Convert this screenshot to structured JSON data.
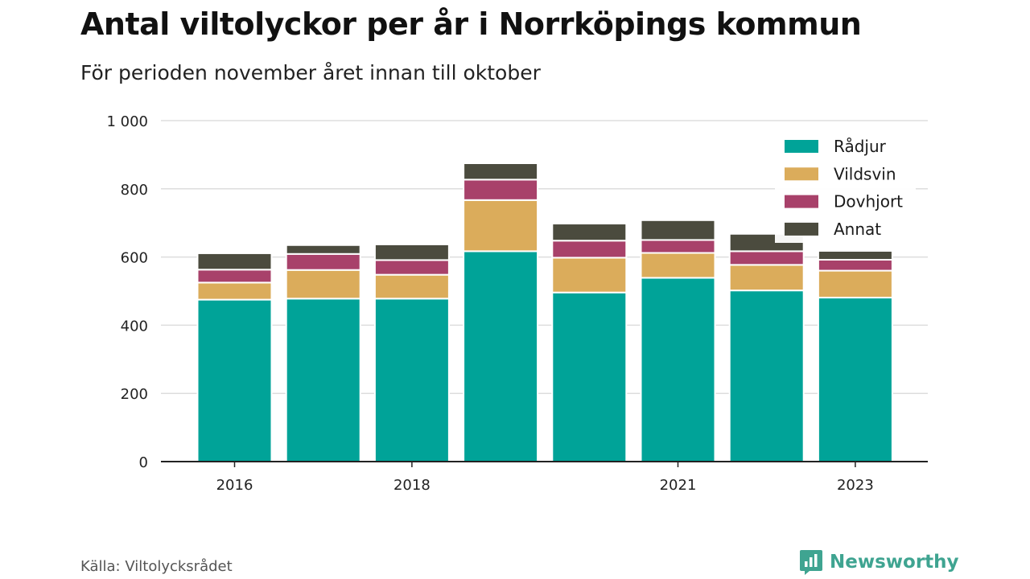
{
  "header": {
    "title": "Antal viltolyckor per år i Norrköpings kommun",
    "subtitle": "För perioden november året innan till oktober"
  },
  "footer": {
    "source": "Källa: Viltolycksrådet",
    "brand": "Newsworthy",
    "brand_icon": "newsworthy-logo-icon"
  },
  "colors": {
    "Rådjur": "#00a398",
    "Vildsvin": "#dbac5b",
    "Dovhjort": "#a8416a",
    "Annat": "#4b4b3e",
    "grid": "#dddddd",
    "axis": "#222222",
    "brand": "#3fa491"
  },
  "chart_data": {
    "type": "bar",
    "stacked": true,
    "categories": [
      "2016",
      "2017",
      "2018",
      "2019",
      "2020",
      "2021",
      "2022",
      "2023"
    ],
    "x_tick_labels": [
      "2016",
      "",
      "2018",
      "",
      "",
      "2021",
      "",
      "2023"
    ],
    "series": [
      {
        "name": "Rådjur",
        "values": [
          475,
          478,
          478,
          617,
          496,
          539,
          502,
          481
        ]
      },
      {
        "name": "Vildsvin",
        "values": [
          50,
          84,
          70,
          150,
          102,
          73,
          75,
          79
        ]
      },
      {
        "name": "Dovhjort",
        "values": [
          38,
          47,
          43,
          60,
          50,
          38,
          40,
          32
        ]
      },
      {
        "name": "Annat",
        "values": [
          48,
          26,
          46,
          48,
          50,
          58,
          51,
          26
        ]
      }
    ],
    "y_ticks": [
      0,
      200,
      400,
      600,
      800,
      1000
    ],
    "y_tick_labels": [
      "0",
      "200",
      "400",
      "600",
      "800",
      "1 000"
    ],
    "ylim": [
      0,
      1000
    ],
    "grid": true,
    "legend_position": "top-right",
    "xlabel": "",
    "ylabel": ""
  }
}
